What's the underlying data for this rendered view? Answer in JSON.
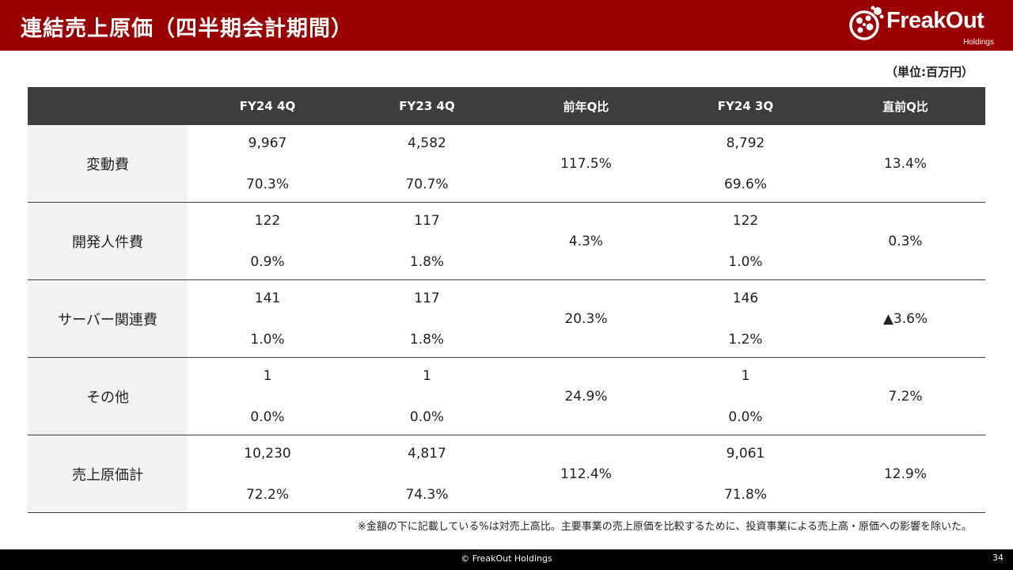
{
  "header": {
    "title": "連結売上原価（四半期会計期間）",
    "logo_text": "FreakOut",
    "logo_sub": "Holdings",
    "brand_color": "#9b0000"
  },
  "unit": "（単位:百万円）",
  "table": {
    "columns": [
      "",
      "FY24 4Q",
      "FY23 4Q",
      "前年Q比",
      "FY24 3Q",
      "直前Q比"
    ],
    "rows": [
      {
        "label": "変動費",
        "fy24_4q": {
          "amount": "9,967",
          "ratio": "70.3%"
        },
        "fy23_4q": {
          "amount": "4,582",
          "ratio": "70.7%"
        },
        "yoy": "117.5%",
        "fy24_3q": {
          "amount": "8,792",
          "ratio": "69.6%"
        },
        "qoq": "13.4%"
      },
      {
        "label": "開発人件費",
        "fy24_4q": {
          "amount": "122",
          "ratio": "0.9%"
        },
        "fy23_4q": {
          "amount": "117",
          "ratio": "1.8%"
        },
        "yoy": "4.3%",
        "fy24_3q": {
          "amount": "122",
          "ratio": "1.0%"
        },
        "qoq": "0.3%"
      },
      {
        "label": "サーバー関連費",
        "fy24_4q": {
          "amount": "141",
          "ratio": "1.0%"
        },
        "fy23_4q": {
          "amount": "117",
          "ratio": "1.8%"
        },
        "yoy": "20.3%",
        "fy24_3q": {
          "amount": "146",
          "ratio": "1.2%"
        },
        "qoq": "▲3.6%"
      },
      {
        "label": "その他",
        "fy24_4q": {
          "amount": "1",
          "ratio": "0.0%"
        },
        "fy23_4q": {
          "amount": "1",
          "ratio": "0.0%"
        },
        "yoy": "24.9%",
        "fy24_3q": {
          "amount": "1",
          "ratio": "0.0%"
        },
        "qoq": "7.2%"
      },
      {
        "label": "売上原価計",
        "fy24_4q": {
          "amount": "10,230",
          "ratio": "72.2%"
        },
        "fy23_4q": {
          "amount": "4,817",
          "ratio": "74.3%"
        },
        "yoy": "112.4%",
        "fy24_3q": {
          "amount": "9,061",
          "ratio": "71.8%"
        },
        "qoq": "12.9%"
      }
    ]
  },
  "footnote": "※金額の下に記載している%は対売上高比。主要事業の売上原価を比較するために、投資事業による売上高・原価への影響を除いた。",
  "footer": {
    "copyright": "© FreakOut Holdings",
    "page_number": "34"
  }
}
